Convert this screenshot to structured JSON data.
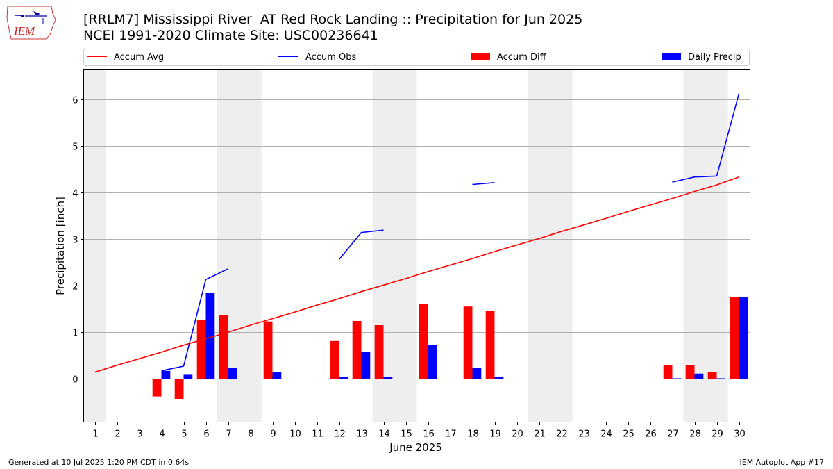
{
  "title": {
    "line1": "[RRLM7] Mississippi River  AT Red Rock Landing :: Precipitation for Jun 2025",
    "line2": "NCEI 1991-2020 Climate Site: USC00236641"
  },
  "logo": {
    "text": "IEM"
  },
  "footer": {
    "left": "Generated at 10 Jul 2025 1:20 PM CDT in 0.64s",
    "right": "IEM Autoplot App #17"
  },
  "colors": {
    "avg": "#ff0000",
    "obs": "#0000ff",
    "diff": "#ff0000",
    "daily": "#0000ff",
    "weekend": "#eeeeee",
    "grid": "#b0b0b0"
  },
  "chart_data": {
    "type": "bar",
    "xlabel": "June 2025",
    "ylabel": "Precipitation [inch]",
    "xlim": [
      0.5,
      30.5
    ],
    "ylim": [
      -0.93,
      6.63
    ],
    "grid": true,
    "legend_placement": "top",
    "days": [
      1,
      2,
      3,
      4,
      5,
      6,
      7,
      8,
      9,
      10,
      11,
      12,
      13,
      14,
      15,
      16,
      17,
      18,
      19,
      20,
      21,
      22,
      23,
      24,
      25,
      26,
      27,
      28,
      29,
      30
    ],
    "x_tick_labels": [
      "1",
      "2",
      "3",
      "4",
      "5",
      "6",
      "7",
      "8",
      "9",
      "10",
      "11",
      "12",
      "13",
      "14",
      "15",
      "16",
      "17",
      "18",
      "19",
      "20",
      "21",
      "22",
      "23",
      "24",
      "25",
      "26",
      "27",
      "28",
      "29",
      "30"
    ],
    "y_ticks": [
      0,
      1,
      2,
      3,
      4,
      5,
      6
    ],
    "y_tick_labels": [
      "0",
      "1",
      "2",
      "3",
      "4",
      "5",
      "6"
    ],
    "weekend_days": [
      1,
      7,
      8,
      14,
      15,
      21,
      22,
      28,
      29
    ],
    "series": [
      {
        "name": "Accum Avg",
        "kind": "line",
        "values": [
          0.14,
          0.29,
          0.43,
          0.57,
          0.72,
          0.86,
          1.0,
          1.15,
          1.29,
          1.43,
          1.58,
          1.72,
          1.87,
          2.01,
          2.15,
          2.3,
          2.44,
          2.58,
          2.73,
          2.87,
          3.01,
          3.16,
          3.3,
          3.44,
          3.59,
          3.73,
          3.87,
          4.02,
          4.16,
          4.33
        ]
      },
      {
        "name": "Accum Obs",
        "kind": "line",
        "values": [
          null,
          null,
          null,
          0.17,
          0.27,
          2.13,
          2.36,
          null,
          null,
          null,
          null,
          2.56,
          3.14,
          3.19,
          null,
          null,
          null,
          4.17,
          4.21,
          null,
          null,
          null,
          null,
          null,
          null,
          null,
          4.22,
          4.33,
          4.35,
          6.12
        ]
      },
      {
        "name": "Accum Diff",
        "kind": "bar",
        "values": [
          null,
          null,
          null,
          -0.38,
          -0.43,
          1.27,
          1.36,
          null,
          1.23,
          null,
          null,
          0.81,
          1.24,
          1.15,
          null,
          1.6,
          null,
          1.55,
          1.46,
          null,
          null,
          null,
          null,
          null,
          null,
          null,
          0.3,
          0.29,
          0.14,
          1.76
        ]
      },
      {
        "name": "Daily Precip",
        "kind": "bar",
        "values": [
          null,
          null,
          null,
          0.17,
          0.1,
          1.85,
          0.23,
          null,
          0.15,
          null,
          null,
          0.04,
          0.57,
          0.04,
          null,
          0.73,
          null,
          0.23,
          0.04,
          null,
          null,
          null,
          null,
          null,
          null,
          null,
          0.01,
          0.11,
          0.01,
          1.75
        ]
      }
    ]
  }
}
